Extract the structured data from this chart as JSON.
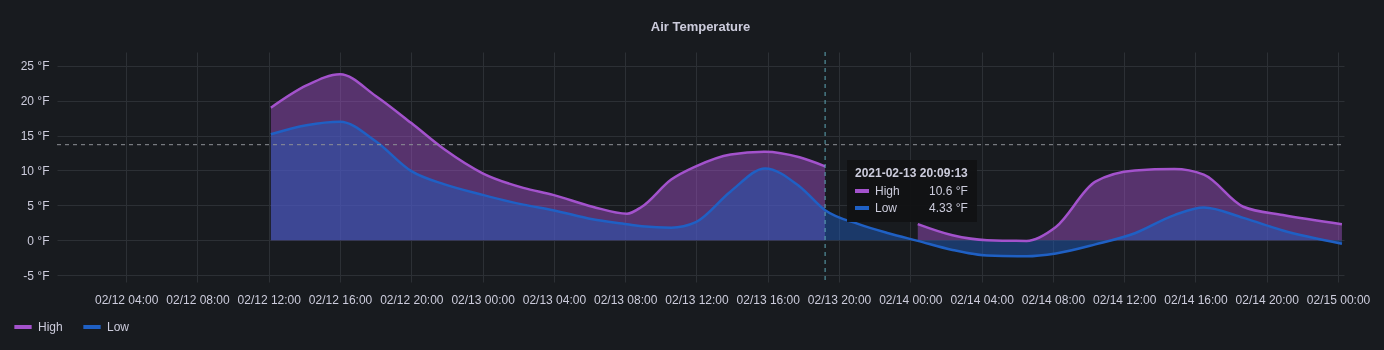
{
  "chart_data": {
    "type": "area",
    "title": "Air Temperature",
    "x": [
      "2021-02-12T12:07",
      "2021-02-12T14:07",
      "2021-02-12T16:00",
      "2021-02-12T18:00",
      "2021-02-12T20:00",
      "2021-02-12T21:52",
      "2021-02-13T00:00",
      "2021-02-13T02:17",
      "2021-02-13T03:57",
      "2021-02-13T06:10",
      "2021-02-13T08:06",
      "2021-02-13T08:56",
      "2021-02-13T10:35",
      "2021-02-13T11:58",
      "2021-02-13T13:55",
      "2021-02-13T15:51",
      "2021-02-13T17:47",
      "2021-02-13T19:13",
      "2021-02-13T21:06",
      "2021-02-13T22:46",
      "2021-02-14T00:25",
      "2021-02-14T02:22",
      "2021-02-14T04:18",
      "2021-02-14T06:31",
      "2021-02-14T08:10",
      "2021-02-14T10:23",
      "2021-02-14T12:36",
      "2021-02-14T14:49",
      "2021-02-14T16:28",
      "2021-02-14T18:41",
      "2021-02-14T20:54",
      "2021-02-15T00:13"
    ],
    "series": [
      {
        "name": "High",
        "color": "#a352cc",
        "values": [
          19.0,
          22.2,
          23.8,
          20.7,
          16.8,
          13.0,
          9.6,
          7.5,
          6.5,
          4.8,
          3.8,
          4.8,
          8.7,
          10.6,
          12.3,
          12.7,
          11.9,
          10.6,
          null,
          null,
          2.3,
          0.7,
          0.0,
          -0.1,
          1.9,
          8.4,
          10.0,
          10.2,
          9.4,
          4.8,
          3.6,
          2.3
        ]
      },
      {
        "name": "Low",
        "color": "#1f60c4",
        "values": [
          15.2,
          16.5,
          17.0,
          14.2,
          9.9,
          8.0,
          6.5,
          5.1,
          4.3,
          3.0,
          2.3,
          2.0,
          1.8,
          2.6,
          7.0,
          10.3,
          7.7,
          4.3,
          2.3,
          1.0,
          -0.1,
          -1.4,
          -2.2,
          -2.3,
          -1.9,
          -0.6,
          1.0,
          3.6,
          4.7,
          3.2,
          1.4,
          -0.5
        ]
      }
    ],
    "xlim": [
      "2021-02-12T00:07",
      "2021-02-15T00:20"
    ],
    "xticks": [
      {
        "value": "2021-02-12T04:00",
        "label": "02/12 04:00"
      },
      {
        "value": "2021-02-12T08:00",
        "label": "02/12 08:00"
      },
      {
        "value": "2021-02-12T12:00",
        "label": "02/12 12:00"
      },
      {
        "value": "2021-02-12T16:00",
        "label": "02/12 16:00"
      },
      {
        "value": "2021-02-12T20:00",
        "label": "02/12 20:00"
      },
      {
        "value": "2021-02-13T00:00",
        "label": "02/13 00:00"
      },
      {
        "value": "2021-02-13T04:00",
        "label": "02/13 04:00"
      },
      {
        "value": "2021-02-13T08:00",
        "label": "02/13 08:00"
      },
      {
        "value": "2021-02-13T12:00",
        "label": "02/13 12:00"
      },
      {
        "value": "2021-02-13T16:00",
        "label": "02/13 16:00"
      },
      {
        "value": "2021-02-13T20:00",
        "label": "02/13 20:00"
      },
      {
        "value": "2021-02-14T00:00",
        "label": "02/14 00:00"
      },
      {
        "value": "2021-02-14T04:00",
        "label": "02/14 04:00"
      },
      {
        "value": "2021-02-14T08:00",
        "label": "02/14 08:00"
      },
      {
        "value": "2021-02-14T12:00",
        "label": "02/14 12:00"
      },
      {
        "value": "2021-02-14T16:00",
        "label": "02/14 16:00"
      },
      {
        "value": "2021-02-14T20:00",
        "label": "02/14 20:00"
      },
      {
        "value": "2021-02-15T00:00",
        "label": "02/15 00:00"
      }
    ],
    "ylim": [
      -6,
      27
    ],
    "yticks": [
      {
        "value": -5,
        "label": "-5 °F"
      },
      {
        "value": 0,
        "label": "0 °F"
      },
      {
        "value": 5,
        "label": "5 °F"
      },
      {
        "value": 10,
        "label": "10 °F"
      },
      {
        "value": 15,
        "label": "15 °F"
      },
      {
        "value": 20,
        "label": "20 °F"
      },
      {
        "value": 25,
        "label": "25 °F"
      }
    ],
    "ref_lines": [
      {
        "axis": "y",
        "value": 13.7,
        "label": null,
        "color": "#8e9097",
        "line_style": "dashed"
      },
      {
        "axis": "x",
        "value": "2021-02-13T19:13",
        "label": null,
        "color": "#5fa8b8",
        "line_style": "dashed"
      }
    ],
    "annotations": [
      "2021-02-13 20:09:13",
      "High",
      "10.6 °F",
      "Low",
      "4.33 °F"
    ],
    "grid": true,
    "legend": "bottom",
    "marker": "none",
    "line_style": "solid"
  }
}
